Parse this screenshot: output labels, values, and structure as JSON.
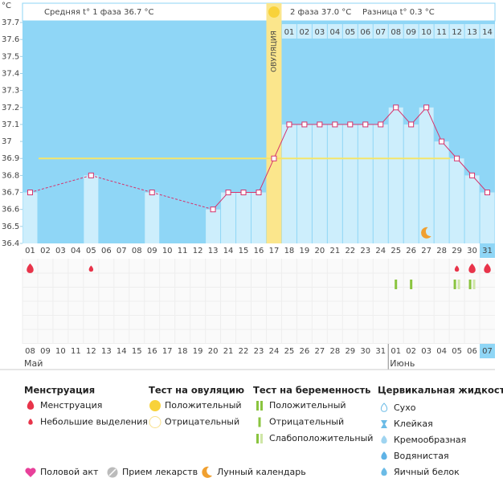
{
  "chart_data": {
    "type": "line",
    "y_unit": "°C",
    "phase1_label": "Средняя t° 1 фаза 36.7 °C",
    "phase2_label": "2 фаза 37.0 °C",
    "difference_label": "Разница t° 0.3 °C",
    "ovulation_label": "ОВУЛЯЦИЯ",
    "ovulation_day": 17,
    "current_day": 31,
    "categories": [
      "01",
      "02",
      "03",
      "04",
      "05",
      "06",
      "07",
      "08",
      "09",
      "10",
      "11",
      "12",
      "13",
      "14",
      "15",
      "16",
      "17",
      "18",
      "19",
      "20",
      "21",
      "22",
      "23",
      "24",
      "25",
      "26",
      "27",
      "28",
      "29",
      "30",
      "31"
    ],
    "post_ovulation_days": [
      null,
      null,
      null,
      null,
      null,
      null,
      null,
      null,
      null,
      null,
      null,
      null,
      null,
      null,
      null,
      null,
      null,
      "01",
      "02",
      "03",
      "04",
      "05",
      "06",
      "07",
      "08",
      "09",
      "10",
      "11",
      "12",
      "13",
      "14"
    ],
    "values": [
      36.7,
      null,
      null,
      null,
      36.8,
      null,
      null,
      null,
      36.7,
      null,
      null,
      null,
      36.6,
      36.7,
      36.7,
      36.7,
      36.9,
      37.1,
      37.1,
      37.1,
      37.1,
      37.1,
      37.1,
      37.1,
      37.2,
      37.1,
      37.2,
      37.0,
      36.9,
      36.8,
      36.7
    ],
    "color": "#d6336c",
    "coverline": 36.9,
    "ylim": [
      36.4,
      37.7
    ],
    "yticks": [
      36.4,
      36.5,
      36.6,
      36.7,
      36.8,
      36.9,
      37,
      37.1,
      37.2,
      37.3,
      37.4,
      37.5,
      37.6,
      37.7
    ],
    "dates": [
      {
        "label": "08",
        "weekend": true,
        "month": "Май"
      },
      {
        "label": "09",
        "weekend": true
      },
      {
        "label": "10",
        "weekend": false
      },
      {
        "label": "11",
        "weekend": false
      },
      {
        "label": "12",
        "weekend": false
      },
      {
        "label": "13",
        "weekend": false
      },
      {
        "label": "14",
        "weekend": false
      },
      {
        "label": "15",
        "weekend": true
      },
      {
        "label": "16",
        "weekend": true
      },
      {
        "label": "17",
        "weekend": false
      },
      {
        "label": "18",
        "weekend": false
      },
      {
        "label": "19",
        "weekend": false
      },
      {
        "label": "20",
        "weekend": false
      },
      {
        "label": "21",
        "weekend": false
      },
      {
        "label": "22",
        "weekend": true
      },
      {
        "label": "23",
        "weekend": true
      },
      {
        "label": "24",
        "weekend": false
      },
      {
        "label": "25",
        "weekend": false
      },
      {
        "label": "26",
        "weekend": false
      },
      {
        "label": "27",
        "weekend": false
      },
      {
        "label": "28",
        "weekend": false
      },
      {
        "label": "29",
        "weekend": true
      },
      {
        "label": "30",
        "weekend": true
      },
      {
        "label": "31",
        "weekend": false
      },
      {
        "label": "01",
        "weekend": false,
        "month": "Июнь"
      },
      {
        "label": "02",
        "weekend": false
      },
      {
        "label": "03",
        "weekend": false
      },
      {
        "label": "04",
        "weekend": false
      },
      {
        "label": "05",
        "weekend": true
      },
      {
        "label": "06",
        "weekend": true
      },
      {
        "label": "07",
        "weekend": false
      }
    ],
    "markers": [
      {
        "day": 1,
        "kind": "menstruation",
        "size": "heavy"
      },
      {
        "day": 5,
        "kind": "menstruation",
        "size": "light"
      },
      {
        "day": 29,
        "kind": "menstruation",
        "size": "light"
      },
      {
        "day": 30,
        "kind": "menstruation",
        "size": "heavy"
      },
      {
        "day": 31,
        "kind": "menstruation",
        "size": "heavy"
      },
      {
        "day": 25,
        "kind": "pregnancy_test",
        "result": "negative"
      },
      {
        "day": 26,
        "kind": "pregnancy_test",
        "result": "negative"
      },
      {
        "day": 29,
        "kind": "pregnancy_test",
        "result": "weak"
      },
      {
        "day": 30,
        "kind": "pregnancy_test",
        "result": "weak"
      },
      {
        "day": 27,
        "kind": "lunar"
      }
    ]
  },
  "legend": {
    "groups": [
      {
        "title": "Менструация",
        "items": [
          "Менструация",
          "Небольшие выделения"
        ]
      },
      {
        "title": "Тест на овуляцию",
        "items": [
          "Положительный",
          "Отрицательный"
        ]
      },
      {
        "title": "Тест на беременность",
        "items": [
          "Положительный",
          "Отрицательный",
          "Слабоположительный"
        ]
      },
      {
        "title": "Цервикальная жидкость",
        "items": [
          "Сухо",
          "Клейкая",
          "Кремообразная",
          "Водянистая",
          "Яичный белок"
        ]
      }
    ],
    "extras": [
      "Половой акт",
      "Прием лекарств",
      "Лунный календарь"
    ]
  }
}
